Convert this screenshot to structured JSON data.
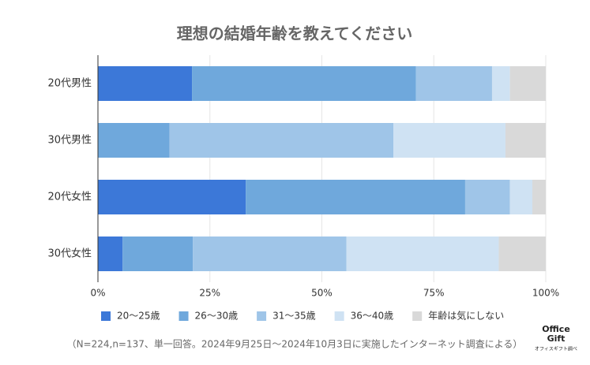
{
  "chart_data": {
    "type": "stacked-barh",
    "title": "理想の結婚年齢を教えてください",
    "categories": [
      "20代男性",
      "30代男性",
      "20代女性",
      "30代女性"
    ],
    "series": [
      {
        "name": "20〜25歳",
        "color": "#3c78d8",
        "values": [
          21,
          0,
          33,
          5.5
        ]
      },
      {
        "name": "26〜30歳",
        "color": "#6fa8dc",
        "values": [
          50,
          16,
          49,
          15.7
        ]
      },
      {
        "name": "31〜35歳",
        "color": "#9fc5e8",
        "values": [
          17,
          50,
          10,
          34.3
        ]
      },
      {
        "name": "36〜40歳",
        "color": "#cfe2f3",
        "values": [
          4,
          25,
          5,
          34
        ]
      },
      {
        "name": "年齢は気にしない",
        "color": "#d9d9d9",
        "values": [
          8,
          9,
          3,
          10.5
        ]
      }
    ],
    "xlim": [
      0,
      100
    ],
    "xticks": [
      {
        "value": 0,
        "label": "0%"
      },
      {
        "value": 25,
        "label": "25%"
      },
      {
        "value": 50,
        "label": "50%"
      },
      {
        "value": 75,
        "label": "75%"
      },
      {
        "value": 100,
        "label": "100%"
      }
    ],
    "grid": true,
    "note": "（N=224,n=137、単一回答。2024年9月25日〜2024年10月3日に実施したインターネット調査による）"
  },
  "logo": {
    "line1": "Office",
    "line2": "Gift",
    "caption": "オフィスギフト調べ"
  }
}
